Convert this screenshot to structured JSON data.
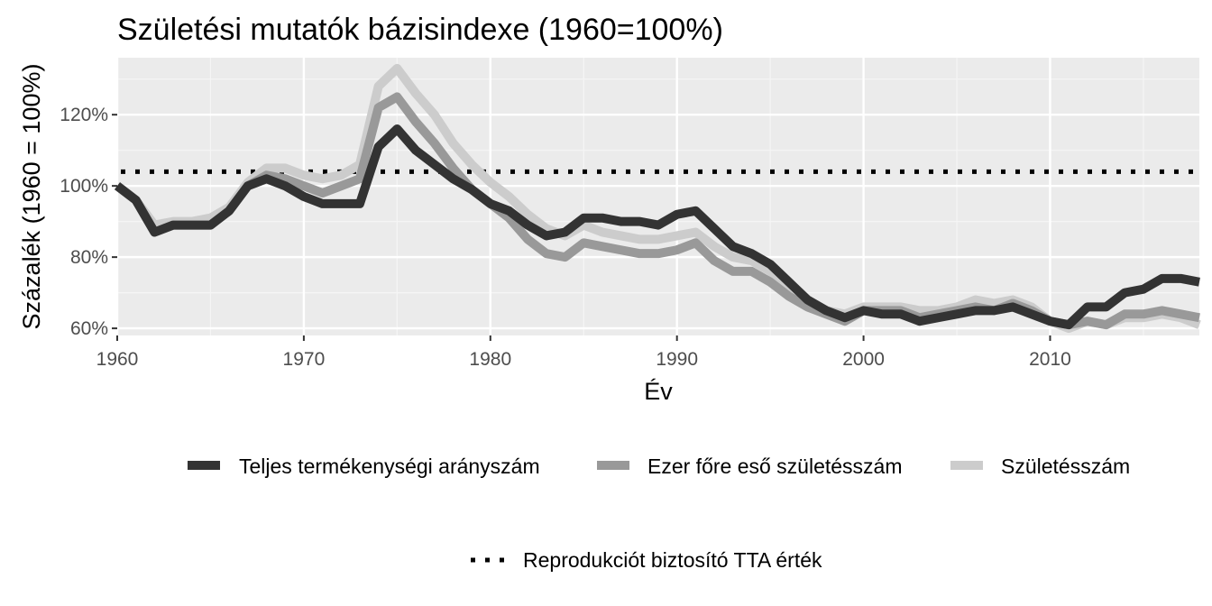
{
  "chart_data": {
    "type": "line",
    "title": "Születési mutatók bázisindexe (1960=100%)",
    "xlabel": "Év",
    "ylabel": "Százalék (1960 = 100%)",
    "xlim": [
      1960,
      2018
    ],
    "ylim": [
      58,
      136
    ],
    "x_ticks": [
      1960,
      1970,
      1980,
      1990,
      2000,
      2010
    ],
    "y_ticks": [
      60,
      80,
      100,
      120
    ],
    "y_tick_labels": [
      "60%",
      "80%",
      "100%",
      "120%"
    ],
    "grid": true,
    "legend_position": "bottom",
    "x": [
      1960,
      1961,
      1962,
      1963,
      1964,
      1965,
      1966,
      1967,
      1968,
      1969,
      1970,
      1971,
      1972,
      1973,
      1974,
      1975,
      1976,
      1977,
      1978,
      1979,
      1980,
      1981,
      1982,
      1983,
      1984,
      1985,
      1986,
      1987,
      1988,
      1989,
      1990,
      1991,
      1992,
      1993,
      1994,
      1995,
      1996,
      1997,
      1998,
      1999,
      2000,
      2001,
      2002,
      2003,
      2004,
      2005,
      2006,
      2007,
      2008,
      2009,
      2010,
      2011,
      2012,
      2013,
      2014,
      2015,
      2016,
      2017,
      2018
    ],
    "series": [
      {
        "name": "Teljes termékenységi arányszám",
        "color": "#333333",
        "values": [
          100,
          96,
          87,
          89,
          89,
          89,
          93,
          100,
          102,
          100,
          97,
          95,
          95,
          95,
          111,
          116,
          110,
          106,
          102,
          99,
          95,
          93,
          89,
          86,
          87,
          91,
          91,
          90,
          90,
          89,
          92,
          93,
          88,
          83,
          81,
          78,
          73,
          68,
          65,
          63,
          65,
          64,
          64,
          62,
          63,
          64,
          65,
          65,
          66,
          64,
          62,
          61,
          66,
          66,
          70,
          71,
          74,
          74,
          73
        ]
      },
      {
        "name": "Ezer főre eső születésszám",
        "color": "#999999",
        "values": [
          100,
          96,
          87,
          89,
          89,
          89,
          93,
          100,
          103,
          102,
          100,
          98,
          100,
          102,
          122,
          125,
          118,
          112,
          105,
          99,
          95,
          91,
          85,
          81,
          80,
          84,
          83,
          82,
          81,
          81,
          82,
          84,
          79,
          76,
          76,
          73,
          69,
          66,
          64,
          62,
          65,
          65,
          65,
          63,
          64,
          65,
          66,
          65,
          67,
          65,
          62,
          61,
          62,
          61,
          64,
          64,
          65,
          64,
          63
        ]
      },
      {
        "name": "Születésszám",
        "color": "#cccccc",
        "values": [
          100,
          96,
          89,
          90,
          90,
          91,
          94,
          101,
          105,
          105,
          103,
          102,
          103,
          106,
          128,
          133,
          126,
          120,
          112,
          106,
          101,
          97,
          92,
          88,
          86,
          89,
          87,
          86,
          85,
          85,
          86,
          87,
          83,
          80,
          79,
          76,
          71,
          67,
          65,
          64,
          66,
          66,
          66,
          65,
          65,
          66,
          68,
          67,
          68,
          66,
          62,
          60,
          62,
          61,
          63,
          63,
          64,
          63,
          61
        ]
      }
    ],
    "reference_line": {
      "name": "Reprodukciót biztosító TTA érték",
      "value": 104,
      "color": "#000000",
      "style": "dotted"
    }
  }
}
